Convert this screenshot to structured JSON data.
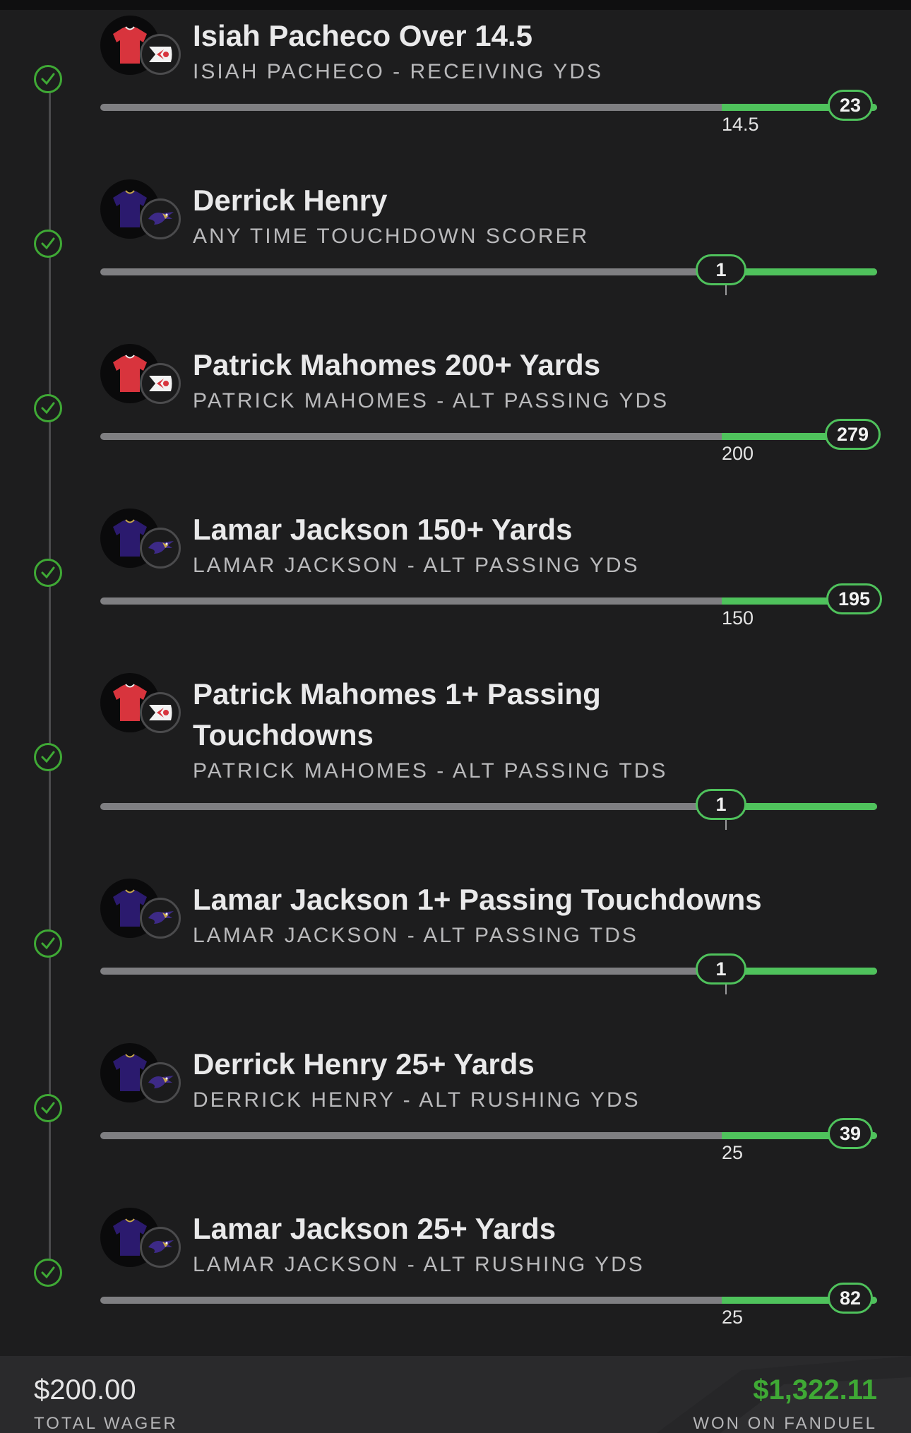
{
  "legs": [
    {
      "title_lines": [
        "Isiah Pacheco Over 14.5"
      ],
      "subtitle": "ISIAH PACHECO - RECEIVING YDS",
      "team": "chiefs",
      "result": "23",
      "threshold": "14.5"
    },
    {
      "title_lines": [
        "Derrick Henry"
      ],
      "subtitle": "ANY TIME TOUCHDOWN SCORER",
      "team": "ravens",
      "result": "1",
      "threshold": ""
    },
    {
      "title_lines": [
        "Patrick Mahomes 200+ Yards"
      ],
      "subtitle": "PATRICK MAHOMES - ALT PASSING YDS",
      "team": "chiefs",
      "result": "279",
      "threshold": "200"
    },
    {
      "title_lines": [
        "Lamar Jackson 150+ Yards"
      ],
      "subtitle": "LAMAR JACKSON - ALT PASSING YDS",
      "team": "ravens",
      "result": "195",
      "threshold": "150"
    },
    {
      "title_lines": [
        "Patrick Mahomes 1+ Passing",
        "Touchdowns"
      ],
      "subtitle": "PATRICK MAHOMES - ALT PASSING TDS",
      "team": "chiefs",
      "result": "1",
      "threshold": ""
    },
    {
      "title_lines": [
        "Lamar Jackson 1+ Passing Touchdowns"
      ],
      "subtitle": "LAMAR JACKSON - ALT PASSING TDS",
      "team": "ravens",
      "result": "1",
      "threshold": ""
    },
    {
      "title_lines": [
        "Derrick Henry 25+ Yards"
      ],
      "subtitle": "DERRICK HENRY - ALT RUSHING YDS",
      "team": "ravens",
      "result": "39",
      "threshold": "25"
    },
    {
      "title_lines": [
        "Lamar Jackson 25+ Yards"
      ],
      "subtitle": "LAMAR JACKSON - ALT RUSHING YDS",
      "team": "ravens",
      "result": "82",
      "threshold": "25"
    }
  ],
  "footer": {
    "wager_amount": "$200.00",
    "wager_label": "TOTAL WAGER",
    "won_amount": "$1,322.11",
    "won_label": "WON ON FANDUEL"
  },
  "icons": {
    "check": "check-circle-icon",
    "chiefs": "chiefs-logo-icon",
    "ravens": "ravens-logo-icon",
    "jersey": "jersey-icon"
  },
  "colors": {
    "win": "#4fc25c",
    "won_text": "#3fa935",
    "chiefs_jersey": "#d8343d",
    "ravens_jersey": "#2b1a6e"
  }
}
